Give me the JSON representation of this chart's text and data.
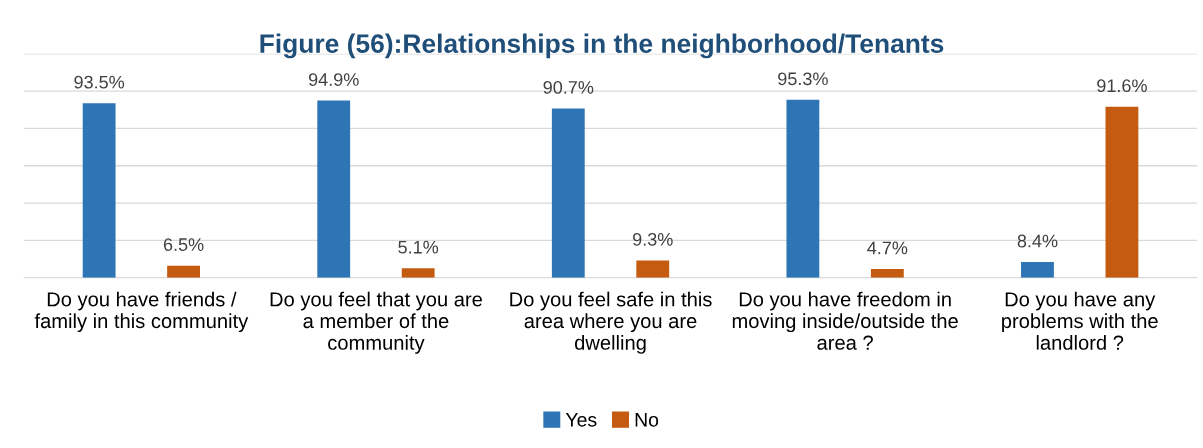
{
  "chart_data": {
    "type": "bar",
    "title": "Figure (56):Relationships in the neighborhood/Tenants",
    "categories": [
      "Do you have friends / family in this community",
      "Do you feel that you are a member of the community",
      "Do you feel safe in this area where you are dwelling",
      "Do you have freedom in moving inside/outside the area ?",
      "Do you have any problems with the landlord ?"
    ],
    "series": [
      {
        "name": "Yes",
        "color": "#2e75b6",
        "values": [
          93.5,
          94.9,
          90.7,
          95.3,
          8.4
        ],
        "value_labels": [
          "93.5%",
          "94.9%",
          "90.7%",
          "95.3%",
          "8.4%"
        ]
      },
      {
        "name": "No",
        "color": "#c55a11",
        "values": [
          6.5,
          5.1,
          9.3,
          4.7,
          91.6
        ],
        "value_labels": [
          "6.5%",
          "5.1%",
          "9.3%",
          "4.7%",
          "91.6%"
        ]
      }
    ],
    "ylim": [
      0,
      120
    ],
    "yticks": [
      {
        "value": 0,
        "label": null
      },
      {
        "value": 20,
        "label": null
      },
      {
        "value": 40,
        "label": null
      },
      {
        "value": 60,
        "label": null
      },
      {
        "value": 80,
        "label": null
      },
      {
        "value": 100,
        "label": null
      },
      {
        "value": 120,
        "label": null
      }
    ],
    "tick_labels": "x",
    "grid": "y",
    "legend": "bottom"
  }
}
